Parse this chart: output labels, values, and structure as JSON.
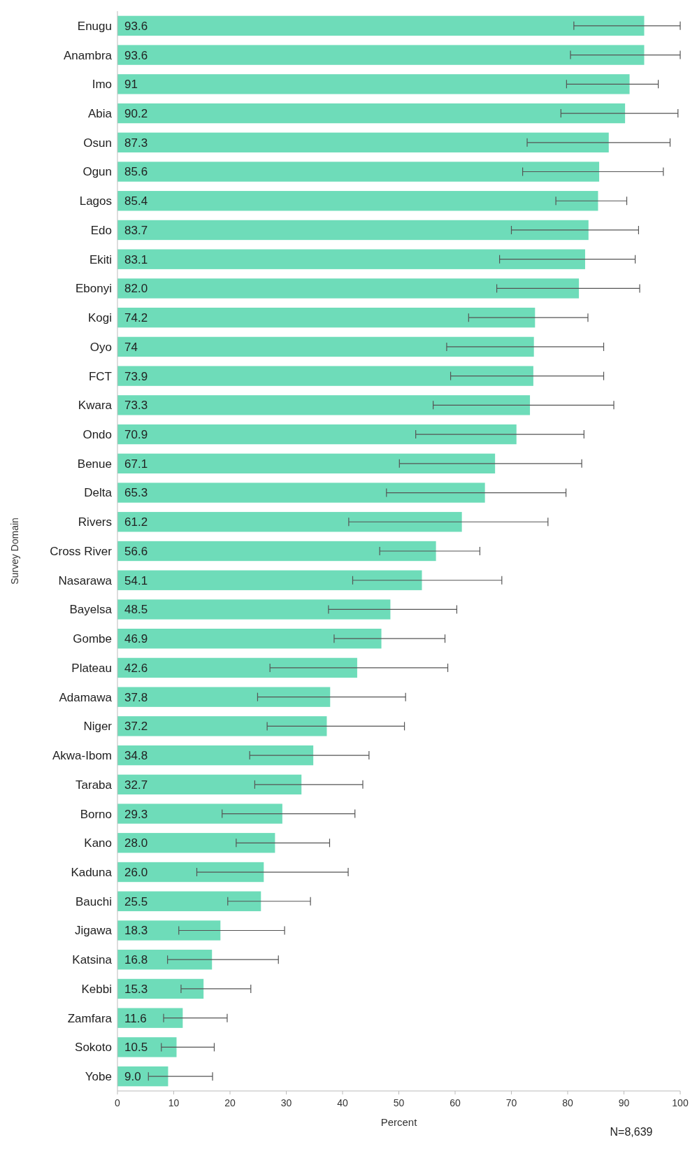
{
  "chart_data": {
    "type": "bar",
    "orientation": "horizontal",
    "xlabel": "Percent",
    "ylabel": "Survey Domain",
    "annotations": [
      "N=8,639"
    ],
    "categories": [
      "Enugu",
      "Anambra",
      "Imo",
      "Abia",
      "Osun",
      "Ogun",
      "Lagos",
      "Edo",
      "Ekiti",
      "Ebonyi",
      "Kogi",
      "Oyo",
      "FCT",
      "Kwara",
      "Ondo",
      "Benue",
      "Delta",
      "Rivers",
      "Cross River",
      "Nasarawa",
      "Bayelsa",
      "Gombe",
      "Plateau",
      "Adamawa",
      "Niger",
      "Akwa-Ibom",
      "Taraba",
      "Borno",
      "Kano",
      "Kaduna",
      "Bauchi",
      "Jigawa",
      "Katsina",
      "Kebbi",
      "Zamfara",
      "Sokoto",
      "Yobe"
    ],
    "values": [
      93.6,
      93.6,
      91,
      90.2,
      87.3,
      85.6,
      85.4,
      83.7,
      83.1,
      82.0,
      74.2,
      74,
      73.9,
      73.3,
      70.9,
      67.1,
      65.3,
      61.2,
      56.6,
      54.1,
      48.5,
      46.9,
      42.6,
      37.8,
      37.2,
      34.8,
      32.7,
      29.3,
      28.0,
      26.0,
      25.5,
      18.3,
      16.8,
      15.3,
      11.6,
      10.5,
      9.0
    ],
    "value_labels": [
      "93.6",
      "93.6",
      "91",
      "90.2",
      "87.3",
      "85.6",
      "85.4",
      "83.7",
      "83.1",
      "82.0",
      "74.2",
      "74",
      "73.9",
      "73.3",
      "70.9",
      "67.1",
      "65.3",
      "61.2",
      "56.6",
      "54.1",
      "48.5",
      "46.9",
      "42.6",
      "37.8",
      "37.2",
      "34.8",
      "32.7",
      "29.3",
      "28.0",
      "26.0",
      "25.5",
      "18.3",
      "16.8",
      "15.3",
      "11.6",
      "10.5",
      "9.0"
    ],
    "errors": [
      [
        81.1,
        100
      ],
      [
        80.5,
        100
      ],
      [
        79.8,
        96.1
      ],
      [
        78.8,
        99.6
      ],
      [
        72.8,
        98.2
      ],
      [
        72.0,
        97.0
      ],
      [
        77.9,
        90.5
      ],
      [
        70.0,
        92.6
      ],
      [
        67.9,
        92.0
      ],
      [
        67.4,
        92.8
      ],
      [
        62.4,
        83.6
      ],
      [
        58.5,
        86.4
      ],
      [
        59.2,
        86.4
      ],
      [
        56.1,
        88.2
      ],
      [
        53.0,
        82.9
      ],
      [
        50.1,
        82.5
      ],
      [
        47.8,
        79.7
      ],
      [
        41.1,
        76.5
      ],
      [
        46.6,
        64.4
      ],
      [
        41.8,
        68.3
      ],
      [
        37.5,
        60.3
      ],
      [
        38.5,
        58.2
      ],
      [
        27.1,
        58.7
      ],
      [
        24.9,
        51.2
      ],
      [
        26.6,
        51.0
      ],
      [
        23.5,
        44.7
      ],
      [
        24.4,
        43.6
      ],
      [
        18.6,
        42.2
      ],
      [
        21.1,
        37.7
      ],
      [
        14.1,
        41.0
      ],
      [
        19.6,
        34.3
      ],
      [
        10.9,
        29.7
      ],
      [
        8.9,
        28.6
      ],
      [
        11.3,
        23.7
      ],
      [
        8.2,
        19.5
      ],
      [
        7.8,
        17.2
      ],
      [
        5.5,
        16.9
      ]
    ],
    "color": "#6edcb9",
    "xlim": [
      0,
      100
    ],
    "xticks": [
      0,
      10,
      20,
      30,
      40,
      50,
      60,
      70,
      80,
      90,
      100
    ]
  }
}
